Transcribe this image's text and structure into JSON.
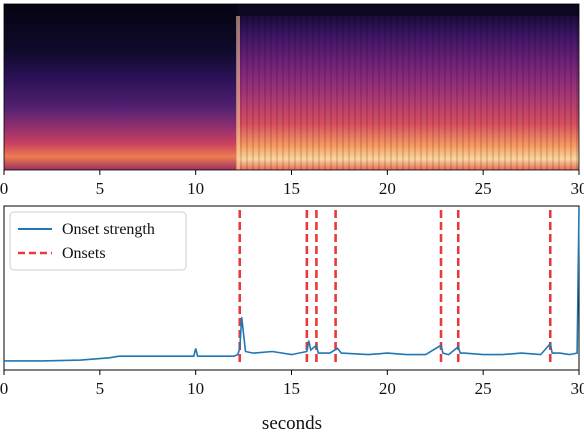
{
  "chart_data": [
    {
      "type": "heatmap",
      "title": "",
      "description_series": "spectrogram",
      "xlim": [
        0,
        30
      ],
      "xticks": [
        0,
        5,
        10,
        15,
        20,
        25,
        30
      ],
      "xlabel": "",
      "colormap": "magma",
      "segments": [
        {
          "x_start": 0,
          "x_end": 12.4,
          "level": "quiet"
        },
        {
          "x_start": 12.4,
          "x_end": 30,
          "level": "loud"
        }
      ]
    },
    {
      "type": "line",
      "title": "",
      "xlabel": "seconds",
      "ylabel": "",
      "xlim": [
        0,
        30
      ],
      "ylim": [
        0,
        1
      ],
      "xticks": [
        0,
        5,
        10,
        15,
        20,
        25,
        30
      ],
      "legend_position": "top-left",
      "series": [
        {
          "name": "Onset strength",
          "color": "#1f77b4",
          "x": [
            0,
            2,
            4,
            5.5,
            6,
            8,
            9.9,
            10,
            10.1,
            12,
            12.2,
            12.3,
            12.4,
            12.6,
            13,
            14,
            15,
            15.8,
            15.9,
            16,
            16.3,
            16.4,
            17,
            17.4,
            17.6,
            19,
            20,
            21,
            22,
            22.8,
            22.9,
            23.2,
            23.7,
            23.8,
            24,
            25,
            26,
            27,
            28,
            28.5,
            28.6,
            29,
            29.5,
            29.9,
            30
          ],
          "y": [
            0.02,
            0.02,
            0.025,
            0.04,
            0.05,
            0.05,
            0.05,
            0.1,
            0.05,
            0.05,
            0.06,
            0.1,
            0.3,
            0.08,
            0.07,
            0.08,
            0.06,
            0.08,
            0.15,
            0.09,
            0.12,
            0.07,
            0.07,
            0.1,
            0.07,
            0.06,
            0.07,
            0.06,
            0.06,
            0.12,
            0.07,
            0.06,
            0.11,
            0.07,
            0.07,
            0.06,
            0.06,
            0.07,
            0.06,
            0.13,
            0.07,
            0.07,
            0.06,
            0.07,
            1.0
          ]
        },
        {
          "name": "Onsets",
          "color": "#e83a3a",
          "style": "dashed",
          "x": [
            12.3,
            15.8,
            16.3,
            17.3,
            22.8,
            23.7,
            28.5
          ]
        }
      ]
    }
  ]
}
